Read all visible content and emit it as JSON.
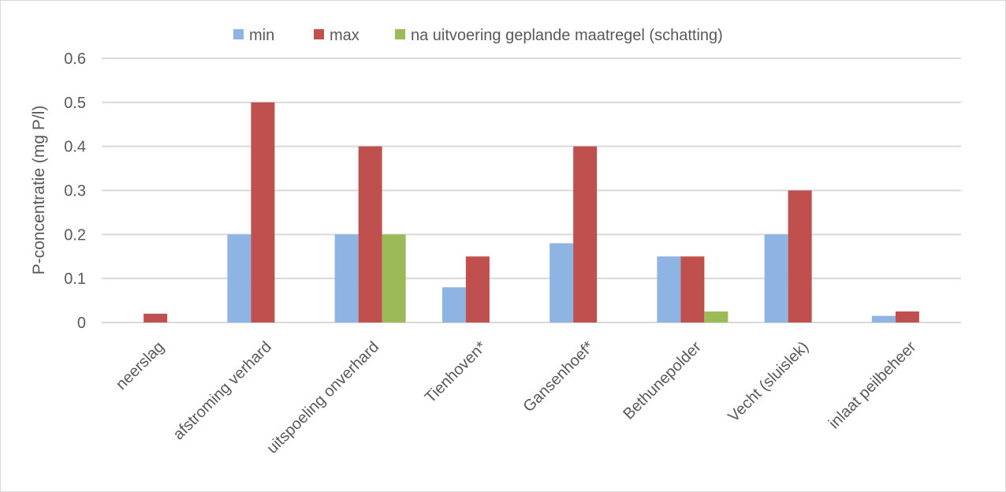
{
  "chart_data": {
    "type": "bar",
    "ylabel": "P-concentratie (mg P/l)",
    "categories": [
      "neerslag",
      "afstroming verhard",
      "uitspoeling onverhard",
      "Tienhoven*",
      "Gansenhoef*",
      "Bethunepolder",
      "Vecht (sluislek)",
      "inlaat peilbeheer"
    ],
    "series": [
      {
        "name": "min",
        "color": "#8db4e2",
        "values": [
          0,
          0.2,
          0.2,
          0.08,
          0.18,
          0.15,
          0.2,
          0.015
        ]
      },
      {
        "name": "max",
        "color": "#c0504d",
        "values": [
          0.02,
          0.5,
          0.4,
          0.15,
          0.4,
          0.15,
          0.3,
          0.025
        ]
      },
      {
        "name": "na uitvoering geplande maatregel (schatting)",
        "color": "#9bbb59",
        "values": [
          0,
          0,
          0.2,
          0,
          0,
          0.025,
          0,
          0
        ]
      }
    ],
    "ylim": [
      0,
      0.6
    ],
    "yticks": [
      "0",
      "0.1",
      "0.2",
      "0.3",
      "0.4",
      "0.5",
      "0.6"
    ],
    "grid": true,
    "legend_position": "top"
  }
}
